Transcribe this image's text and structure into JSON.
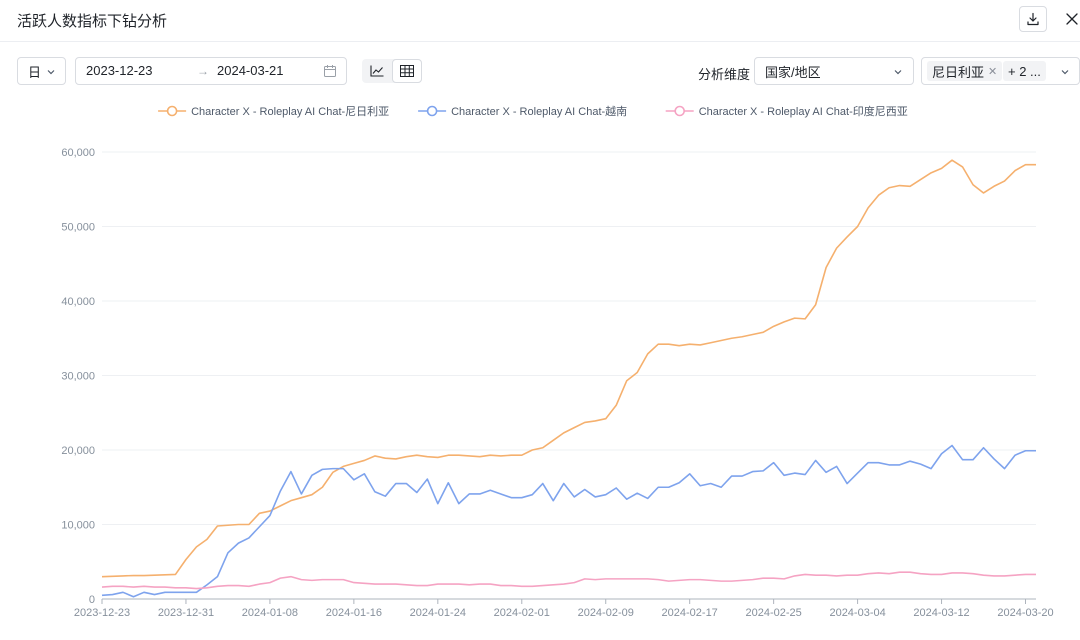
{
  "window": {
    "title": "活跃人数指标下钻分析",
    "download_icon": "download-icon",
    "close_icon": "close-icon"
  },
  "controls": {
    "granularity": "日",
    "date_start": "2023-12-23",
    "date_arrow": "→",
    "date_end": "2024-03-21",
    "view_toggle": [
      "line-chart-icon",
      "table-icon"
    ],
    "dimension_label": "分析维度",
    "dimension_value": "国家/地区",
    "filter_tags": [
      {
        "label": "尼日利亚",
        "removable": true
      },
      {
        "label": "+ 2 ...",
        "removable": false
      }
    ]
  },
  "chart_data": {
    "type": "line",
    "title": "",
    "xlabel": "",
    "ylabel": "",
    "ylim": [
      0,
      60000
    ],
    "y_ticks": [
      "0",
      "10,000",
      "20,000",
      "30,000",
      "40,000",
      "50,000",
      "60,000"
    ],
    "x_start": "2023-12-23",
    "x_ticks": [
      "2023-12-23",
      "2023-12-31",
      "2024-01-08",
      "2024-01-16",
      "2024-01-24",
      "2024-02-01",
      "2024-02-09",
      "2024-02-17",
      "2024-02-25",
      "2024-03-04",
      "2024-03-12",
      "2024-03-20"
    ],
    "grid": "horizontal",
    "legend_position": "top",
    "series": [
      {
        "name": "Character X - Roleplay AI Chat-尼日利亚",
        "color": "#f5b06e",
        "values": [
          3000,
          3050,
          3100,
          3150,
          3150,
          3200,
          3250,
          3300,
          5300,
          7000,
          8000,
          9800,
          9900,
          10000,
          10000,
          11500,
          11800,
          12500,
          13200,
          13600,
          14000,
          15000,
          17000,
          17800,
          18200,
          18600,
          19200,
          18900,
          18800,
          19100,
          19300,
          19100,
          19000,
          19300,
          19300,
          19200,
          19100,
          19300,
          19200,
          19300,
          19300,
          20000,
          20300,
          21300,
          22300,
          23000,
          23700,
          23900,
          24200,
          26000,
          29300,
          30400,
          32900,
          34200,
          34200,
          34000,
          34200,
          34100,
          34400,
          34700,
          35000,
          35200,
          35500,
          35800,
          36600,
          37200,
          37700,
          37600,
          39500,
          44500,
          47100,
          48600,
          50000,
          52500,
          54200,
          55200,
          55500,
          55400,
          56300,
          57200,
          57800,
          58900,
          58000,
          55600,
          54500,
          55400,
          56100,
          57500,
          58300,
          58300
        ]
      },
      {
        "name": "Character X - Roleplay AI Chat-越南",
        "color": "#7ea3ed",
        "values": [
          500,
          600,
          900,
          300,
          900,
          600,
          900,
          900,
          900,
          900,
          1900,
          3000,
          6200,
          7500,
          8200,
          9700,
          11200,
          14500,
          17100,
          14100,
          16600,
          17400,
          17500,
          17500,
          16000,
          16800,
          14400,
          13800,
          15500,
          15500,
          14300,
          16100,
          12800,
          15600,
          12800,
          14100,
          14100,
          14600,
          14100,
          13600,
          13600,
          14000,
          15500,
          13200,
          15500,
          13700,
          14700,
          13700,
          14000,
          14900,
          13400,
          14200,
          13500,
          15000,
          15000,
          15600,
          16800,
          15200,
          15500,
          15000,
          16500,
          16500,
          17100,
          17200,
          18300,
          16600,
          16900,
          16700,
          18600,
          17000,
          17800,
          15500,
          16900,
          18300,
          18300,
          18000,
          18000,
          18500,
          18100,
          17500,
          19500,
          20600,
          18700,
          18700,
          20300,
          18800,
          17500,
          19300,
          19900,
          19900
        ]
      },
      {
        "name": "Character X - Roleplay AI Chat-印度尼西亚",
        "color": "#f5a3c3",
        "values": [
          1600,
          1700,
          1700,
          1600,
          1700,
          1600,
          1600,
          1500,
          1500,
          1400,
          1500,
          1700,
          1800,
          1800,
          1700,
          2000,
          2200,
          2800,
          3000,
          2600,
          2500,
          2600,
          2600,
          2600,
          2200,
          2100,
          2000,
          2000,
          2000,
          1900,
          1800,
          1800,
          2000,
          2000,
          2000,
          1900,
          2000,
          2000,
          1800,
          1800,
          1700,
          1700,
          1800,
          1900,
          2000,
          2200,
          2700,
          2600,
          2700,
          2700,
          2700,
          2700,
          2700,
          2600,
          2400,
          2500,
          2600,
          2600,
          2500,
          2400,
          2400,
          2500,
          2600,
          2800,
          2800,
          2700,
          3100,
          3300,
          3200,
          3200,
          3100,
          3200,
          3200,
          3400,
          3500,
          3400,
          3600,
          3600,
          3400,
          3300,
          3300,
          3500,
          3500,
          3400,
          3200,
          3100,
          3100,
          3200,
          3300,
          3300
        ]
      }
    ]
  }
}
